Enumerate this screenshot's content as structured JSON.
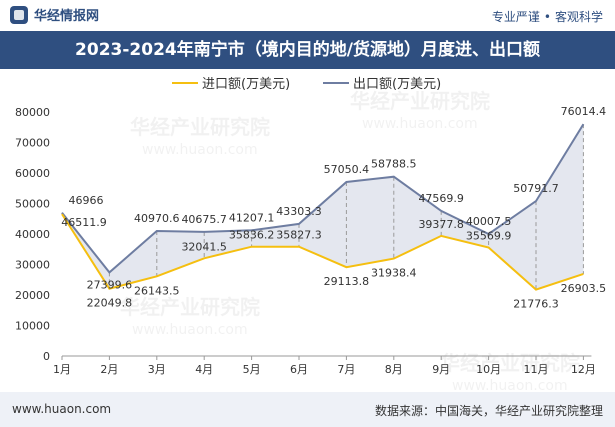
{
  "header": {
    "brand_name": "华经情报网",
    "tagline_a": "专业严谨",
    "tagline_b": "客观科学"
  },
  "footer": {
    "website": "www.huaon.com",
    "source": "数据来源：中国海关，华经产业研究院整理"
  },
  "watermark": {
    "cn": "华经产业研究院",
    "en": "www.huaon.com"
  },
  "colors": {
    "import": "#f5bf10",
    "export": "#6e7da1",
    "fill": "#dfe3ec",
    "title_bg": "#2f4f80"
  },
  "chart_data": {
    "type": "line",
    "title": "2023-2024年南宁市（境内目的地/货源地）月度进、出口额",
    "categories": [
      "1月",
      "2月",
      "3月",
      "4月",
      "5月",
      "6月",
      "7月",
      "8月",
      "9月",
      "10月",
      "11月",
      "12月"
    ],
    "ylim": [
      0,
      80000
    ],
    "yticks": [
      0,
      10000,
      20000,
      30000,
      40000,
      50000,
      60000,
      70000,
      80000
    ],
    "legend_position": "top-center",
    "grid": false,
    "series": [
      {
        "name": "进口额(万美元)",
        "values": [
          46511.9,
          22049.8,
          26143.5,
          32041.5,
          35836.2,
          35827.3,
          29113.8,
          31938.4,
          39377.8,
          35569.9,
          21776.3,
          26903.5
        ]
      },
      {
        "name": "出口额(万美元)",
        "values": [
          46966,
          27399.6,
          40970.6,
          40675.7,
          41207.1,
          43303.3,
          57050.4,
          58788.5,
          47569.9,
          40007.5,
          50791.7,
          76014.4
        ]
      }
    ]
  }
}
